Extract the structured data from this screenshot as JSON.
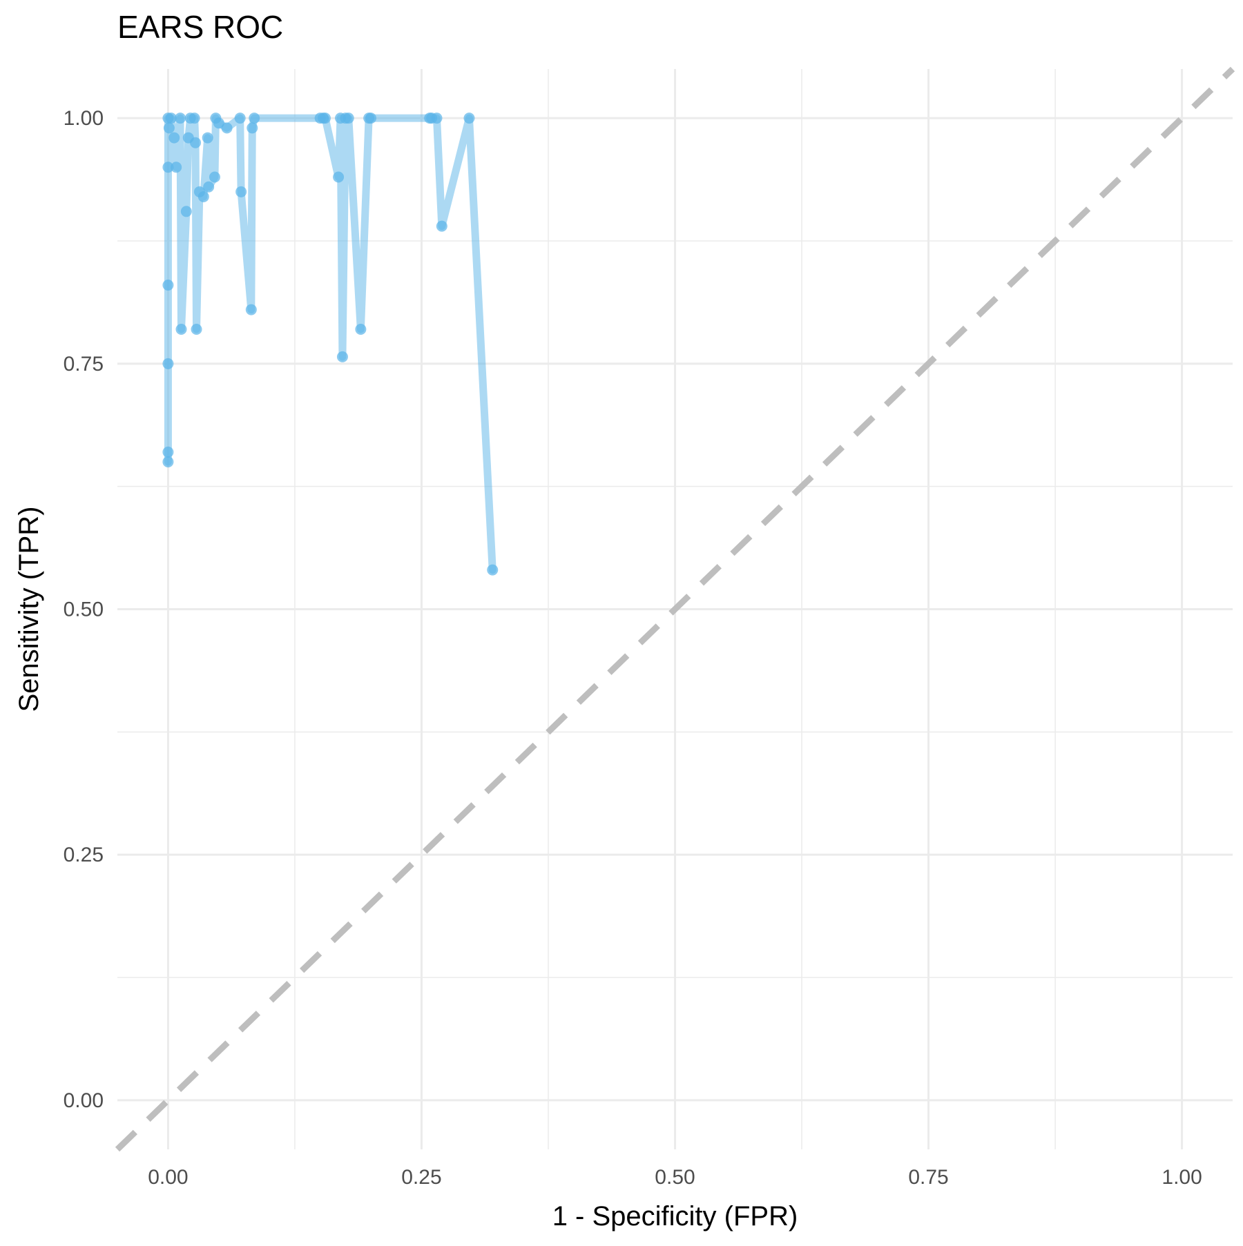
{
  "chart_data": {
    "type": "line",
    "title": "EARS ROC",
    "xlabel": "1 - Specificity (FPR)",
    "ylabel": "Sensitivity (TPR)",
    "xlim": [
      -0.05,
      1.05
    ],
    "ylim": [
      -0.05,
      1.05
    ],
    "x_ticks": [
      "0.00",
      "0.25",
      "0.50",
      "0.75",
      "1.00"
    ],
    "y_ticks": [
      "0.00",
      "0.25",
      "0.50",
      "0.75",
      "1.00"
    ],
    "grid": true,
    "legend": "none",
    "colors": {
      "series": "#5ab4e8",
      "reference": "#bebebe",
      "grid": "#ebebeb",
      "tick_text": "#4d4d4d"
    },
    "reference_line": {
      "name": "",
      "x": [
        0,
        1
      ],
      "y": [
        0,
        1
      ],
      "style": "dashed"
    },
    "series": [
      {
        "name": "",
        "x": [
          0.32,
          0.297,
          0.27,
          0.265,
          0.26,
          0.258,
          0.2,
          0.198,
          0.19,
          0.178,
          0.175,
          0.172,
          0.17,
          0.168,
          0.155,
          0.153,
          0.15,
          0.085,
          0.083,
          0.082,
          0.072,
          0.071,
          0.058,
          0.05,
          0.047,
          0.046,
          0.04,
          0.039,
          0.035,
          0.031,
          0.028,
          0.027,
          0.026,
          0.022,
          0.02,
          0.018,
          0.013,
          0.012,
          0.008,
          0.006,
          0.003,
          0.001,
          0,
          0,
          0,
          0,
          0,
          0
        ],
        "y": [
          0.54,
          1.0,
          0.89,
          1.0,
          1.0,
          1.0,
          1.0,
          1.0,
          0.785,
          1.0,
          1.0,
          0.757,
          1.0,
          0.94,
          1.0,
          1.0,
          1.0,
          1.0,
          0.99,
          0.805,
          0.925,
          1.0,
          0.99,
          0.995,
          1.0,
          0.94,
          0.93,
          0.98,
          0.92,
          0.925,
          0.785,
          0.975,
          1.0,
          1.0,
          0.98,
          0.905,
          0.785,
          1.0,
          0.95,
          0.98,
          1.0,
          0.99,
          0.95,
          0.83,
          0.75,
          0.66,
          0.65,
          1.0
        ]
      }
    ]
  }
}
